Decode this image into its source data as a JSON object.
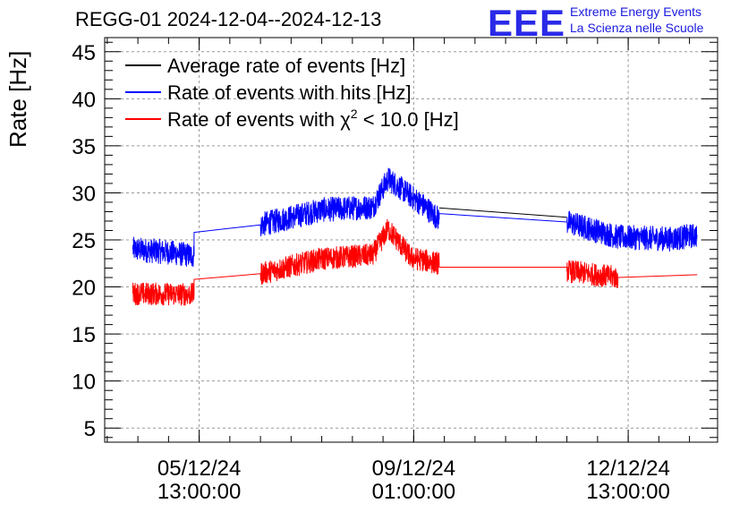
{
  "header": {
    "title": "REGG-01 2024-12-04--2024-12-13",
    "logo": "EEE",
    "logo_line1": "Extreme Energy Events",
    "logo_line2": "La Scienza nelle Scuole"
  },
  "chart_data": {
    "type": "line",
    "title": "REGG-01 2024-12-04--2024-12-13",
    "ylabel": "Rate [Hz]",
    "xlabel": "",
    "ylim": [
      3.5,
      46.5
    ],
    "yticks": [
      5,
      10,
      15,
      20,
      25,
      30,
      35,
      40,
      45
    ],
    "xlim": [
      "2024-12-04 00:00",
      "2024-12-14 00:00"
    ],
    "xticks": [
      {
        "t": "2024-12-05 13:00",
        "line1": "05/12/24",
        "line2": "13:00:00"
      },
      {
        "t": "2024-12-09 01:00",
        "line1": "09/12/24",
        "line2": "01:00:00"
      },
      {
        "t": "2024-12-12 13:00",
        "line1": "12/12/24",
        "line2": "13:00:00"
      }
    ],
    "grid": true,
    "legend": {
      "placement": "top-left",
      "entries": [
        {
          "label": "Average rate of events [Hz]",
          "color": "#000000"
        },
        {
          "label": "Rate of events with hits [Hz]",
          "color": "#0000ff"
        },
        {
          "label_prefix": "Rate of events with ",
          "label_symbol": "χ",
          "label_sup": "2",
          "label_suffix": " < 10.0 [Hz]",
          "color": "#ff0000"
        }
      ]
    },
    "series": [
      {
        "name": "Average rate of events [Hz]",
        "color": "#000000",
        "noise": 0,
        "x": [
          "2024-12-09 11:00",
          "2024-12-11 13:00"
        ],
        "y": [
          28.4,
          27.4
        ]
      },
      {
        "name": "Rate of events with hits [Hz]",
        "color": "#0000ff",
        "noise": 1.3,
        "x": [
          "2024-12-04 11:00",
          "2024-12-05 01:00",
          "2024-12-05 11:00",
          "2024-12-05 11:00",
          "2024-12-06 13:00",
          "2024-12-07 13:00",
          "2024-12-08 09:00",
          "2024-12-08 15:00",
          "2024-12-09 06:00",
          "2024-12-09 11:00",
          "2024-12-09 11:00",
          "2024-12-11 13:00",
          "2024-12-11 13:00",
          "2024-12-12 09:00",
          "2024-12-13 06:00",
          "2024-12-13 16:00"
        ],
        "y": [
          24.0,
          23.7,
          23.3,
          25.8,
          26.6,
          28.2,
          28.5,
          31.5,
          28.4,
          27.2,
          27.8,
          26.9,
          26.9,
          25.3,
          25.1,
          25.5
        ]
      },
      {
        "name": "Rate of events with χ2 < 10.0 [Hz]",
        "color": "#ff0000",
        "noise": 1.2,
        "x": [
          "2024-12-04 11:00",
          "2024-12-05 11:00",
          "2024-12-05 11:00",
          "2024-12-06 13:00",
          "2024-12-07 13:00",
          "2024-12-08 09:00",
          "2024-12-08 15:00",
          "2024-12-09 00:00",
          "2024-12-09 11:00",
          "2024-12-09 11:00",
          "2024-12-11 13:00",
          "2024-12-11 13:00",
          "2024-12-12 09:00",
          "2024-12-13 16:00"
        ],
        "y": [
          19.3,
          19.2,
          20.8,
          21.4,
          23.0,
          23.4,
          26.2,
          23.1,
          22.5,
          22.1,
          22.1,
          21.7,
          21.0,
          21.3
        ]
      }
    ]
  }
}
